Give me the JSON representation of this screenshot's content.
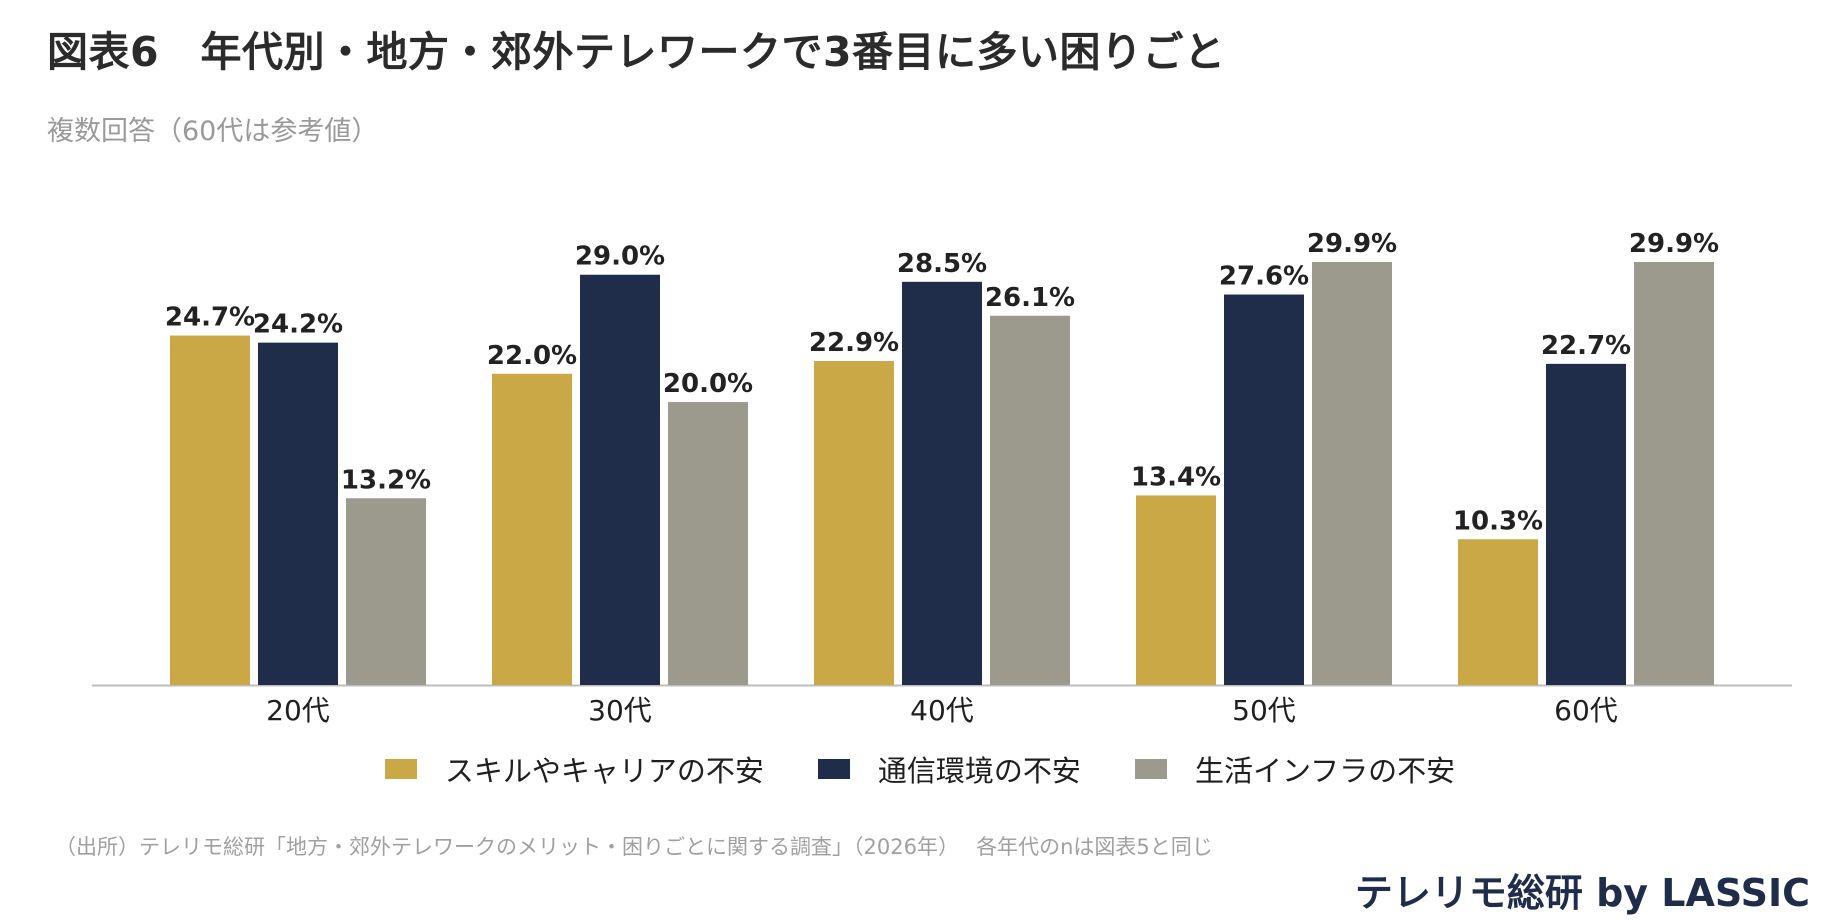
{
  "title": "図表6　年代別・地方・郊外テレワークで3番目に多い困りごと",
  "subtitle": "複数回答（60代は参考値）",
  "source": "（出所）テレリモ総研「地方・郊外テレワークのメリット・困りごとに関する調査」（2026年）　 各年代のnは図表5と同じ",
  "brand": "テレリモ総研 by LASSIC",
  "chart_data": {
    "type": "bar",
    "categories": [
      "20代",
      "30代",
      "40代",
      "50代",
      "60代"
    ],
    "series": [
      {
        "name": "スキルやキャリアの不安",
        "values": [
          24.7,
          22.0,
          22.9,
          13.4,
          10.3
        ],
        "color": "#c9a845"
      },
      {
        "name": "通信環境の不安",
        "values": [
          24.2,
          29.0,
          28.5,
          27.6,
          22.7
        ],
        "color": "#1f2d4a"
      },
      {
        "name": "生活インフラの不安",
        "values": [
          13.2,
          20.0,
          26.1,
          29.9,
          29.9
        ],
        "color": "#9c9a8d"
      }
    ],
    "value_suffix": "%",
    "ylim": [
      0,
      29.9
    ],
    "grid": false,
    "legend_position": "bottom"
  }
}
